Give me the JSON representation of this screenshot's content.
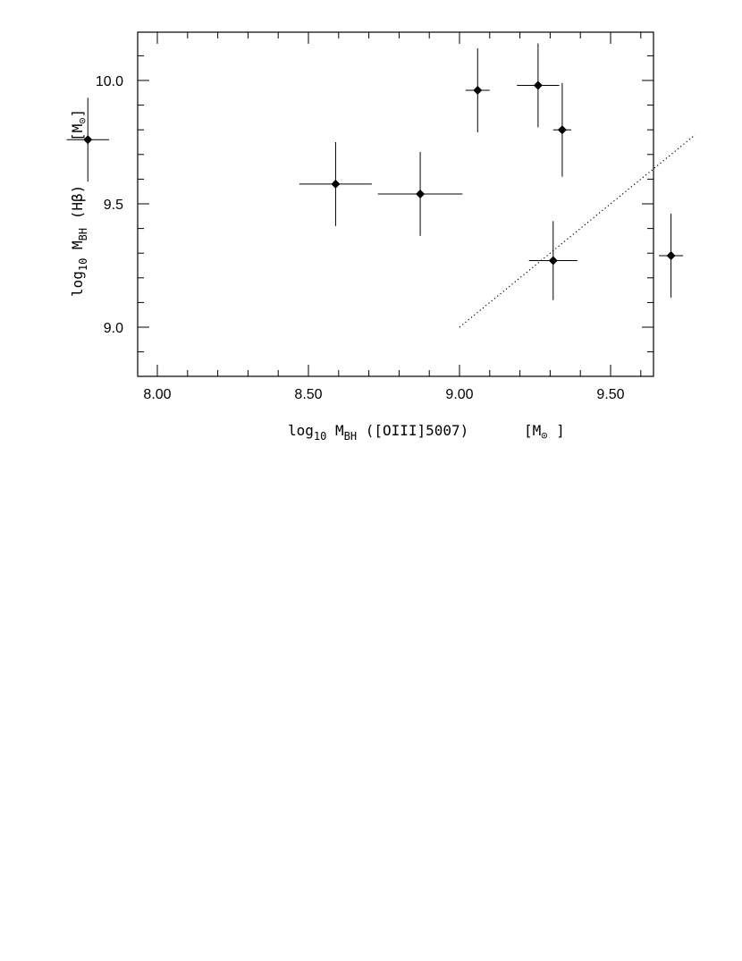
{
  "chart_data": {
    "type": "scatter",
    "xlim": [
      7.5,
      9.85
    ],
    "ylim": [
      8.8,
      10.2
    ],
    "x_ticks": [
      8.0,
      8.5,
      9.0,
      9.5
    ],
    "x_tick_labels": [
      "8.00",
      "8.50",
      "9.00",
      "9.50"
    ],
    "y_ticks": [
      9.0,
      9.5,
      10.0
    ],
    "y_tick_labels": [
      "9.0",
      "9.5",
      "10.0"
    ],
    "xlabel": {
      "pre": "log",
      "pre_sub": "10",
      "mid": " M",
      "mid_sub": "BH",
      "rest": " ([OIII]5007)",
      "unit_pre": "[M",
      "unit_sym": "⊙",
      "unit_post": " ]"
    },
    "ylabel": {
      "pre": "log",
      "pre_sub": "10",
      "mid": " M",
      "mid_sub": "BH",
      "rest": " (Hβ)",
      "unit_pre": "[M",
      "unit_sym": "⊙",
      "unit_post": "]"
    },
    "points": [
      {
        "x": 7.77,
        "y": 9.76,
        "xerr": 0.07,
        "yerr": 0.17
      },
      {
        "x": 8.59,
        "y": 9.58,
        "xerr": 0.12,
        "yerr": 0.17
      },
      {
        "x": 8.87,
        "y": 9.54,
        "xerr": 0.14,
        "yerr": 0.17
      },
      {
        "x": 9.06,
        "y": 9.96,
        "xerr": 0.04,
        "yerr": 0.17
      },
      {
        "x": 9.26,
        "y": 9.98,
        "xerr": 0.07,
        "yerr": 0.17
      },
      {
        "x": 9.34,
        "y": 9.8,
        "xerr": 0.03,
        "yerr": 0.19
      },
      {
        "x": 9.31,
        "y": 9.27,
        "xerr": 0.08,
        "yerr": 0.16
      },
      {
        "x": 9.7,
        "y": 9.29,
        "xerr": 0.04,
        "yerr": 0.17
      }
    ],
    "reference_line": {
      "x": [
        9.0,
        9.78
      ],
      "y": [
        9.0,
        9.78
      ],
      "style": "dotted"
    },
    "grid": false,
    "legend": "none"
  }
}
